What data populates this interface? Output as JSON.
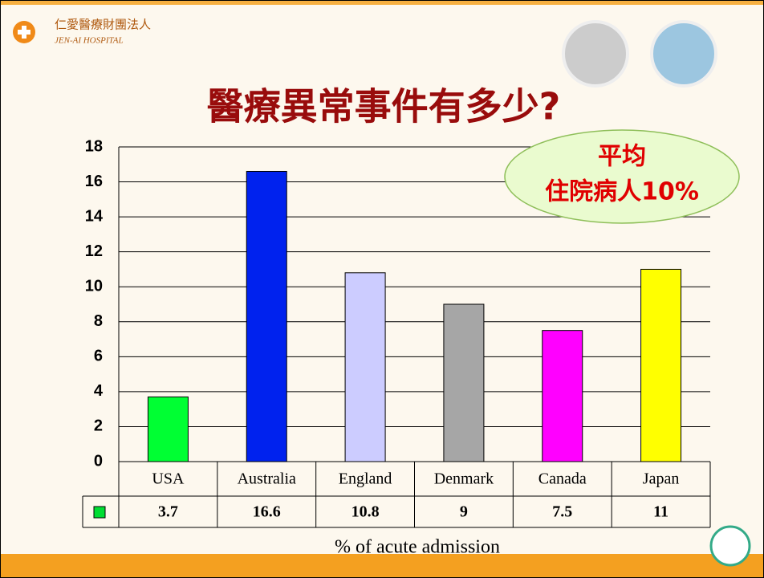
{
  "header": {
    "org_name": "仁愛醫療財團法人",
    "org_name_en": "JEN-AI HOSPITAL"
  },
  "chart_data": {
    "type": "bar",
    "title": "醫療異常事件有多少?",
    "categories": [
      "USA",
      "Australia",
      "England",
      "Denmark",
      "Canada",
      "Japan"
    ],
    "values": [
      3.7,
      16.6,
      10.8,
      9,
      7.5,
      11
    ],
    "colors": [
      "#00ff33",
      "#0022ee",
      "#ccccff",
      "#a6a6a6",
      "#ff00ff",
      "#ffff00"
    ],
    "legend_color": "#00dd33",
    "ylim": [
      0,
      18
    ],
    "yticks": [
      0,
      2,
      4,
      6,
      8,
      10,
      12,
      14,
      16,
      18
    ],
    "grid": true,
    "xlabel": "% of acute admission",
    "annotation": [
      "平均",
      "住院病人10%"
    ]
  }
}
